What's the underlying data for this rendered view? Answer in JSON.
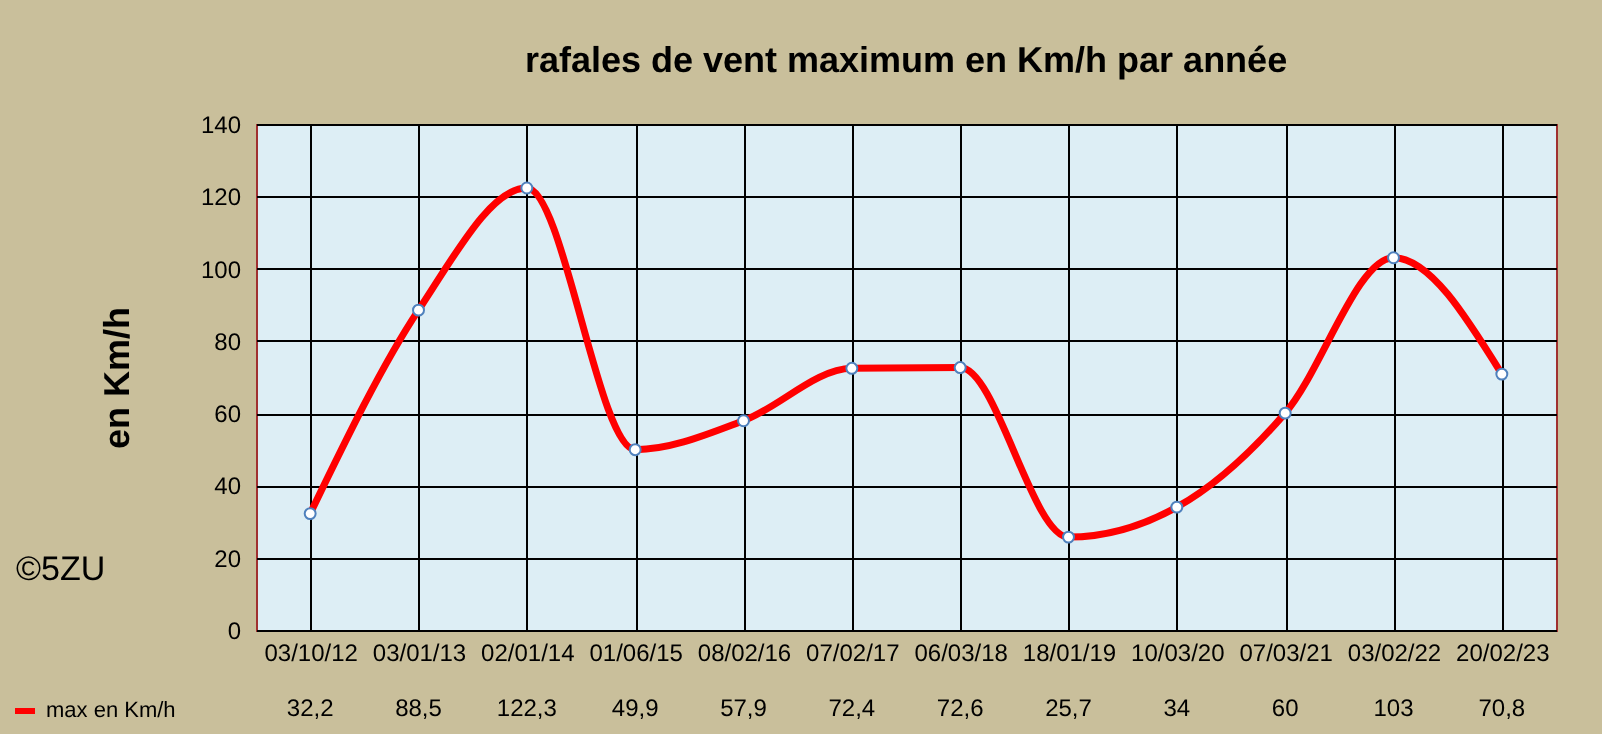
{
  "chart_data": {
    "type": "line",
    "title": "rafales de vent maximum en Km/h par année",
    "ylabel": "en  Km/h",
    "categories": [
      "03/10/12",
      "03/01/13",
      "02/01/14",
      "01/06/15",
      "08/02/16",
      "07/02/17",
      "06/03/18",
      "18/01/19",
      "10/03/20",
      "07/03/21",
      "03/02/22",
      "20/02/23"
    ],
    "series": [
      {
        "name": "max en Km/h",
        "color": "#ff0000",
        "values": [
          32.2,
          88.5,
          122.3,
          49.9,
          57.9,
          72.4,
          72.6,
          25.7,
          34,
          60,
          103,
          70.8
        ],
        "value_labels": [
          "32,2",
          "88,5",
          "122,3",
          "49,9",
          "57,9",
          "72,4",
          "72,6",
          "25,7",
          "34",
          "60",
          "103",
          "70,8"
        ]
      }
    ],
    "ylim": [
      0,
      140
    ],
    "yticks": [
      0,
      20,
      40,
      60,
      80,
      100,
      120,
      140
    ],
    "grid": true,
    "legend": "bottom left",
    "marker": "circle",
    "line_style": "solid",
    "annotations": [
      "©5ZU"
    ]
  }
}
